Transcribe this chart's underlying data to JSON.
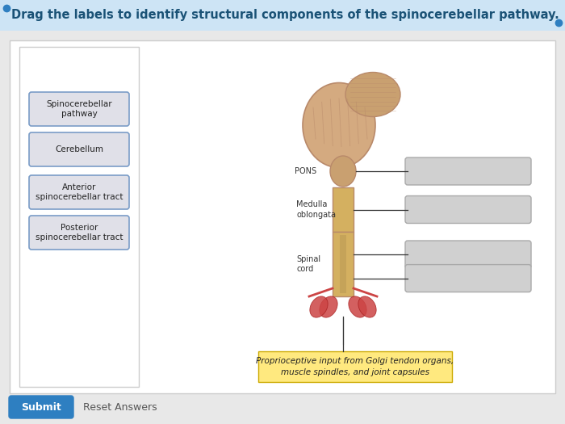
{
  "title": "Drag the labels to identify structural components of the spinocerebellar pathway.",
  "title_color": "#1a5276",
  "title_fontsize": 10.5,
  "bg_color": "#e8e8e8",
  "main_panel_color": "#ffffff",
  "left_panel_color": "#ffffff",
  "drag_labels": [
    "Spinocerebellar\npathway",
    "Cerebellum",
    "Anterior\nspinocerebellar tract",
    "Posterior\nspinocerebellar tract"
  ],
  "drag_label_bg": "#e0e0e8",
  "drag_label_border": "#7a9cc7",
  "answer_box_color": "#d0d0d0",
  "answer_box_border": "#aaaaaa",
  "note_bg": "#ffe97f",
  "note_text": "Proprioceptive input from Golgi tendon organs,\nmuscle spindles, and joint capsules",
  "note_fontsize": 7.5,
  "dot_color": "#2e7fc1",
  "submit_btn_color": "#2e7fc1",
  "submit_text": "Submit",
  "reset_text": "Reset Answers",
  "title_bar_bg": "#cde4f5"
}
